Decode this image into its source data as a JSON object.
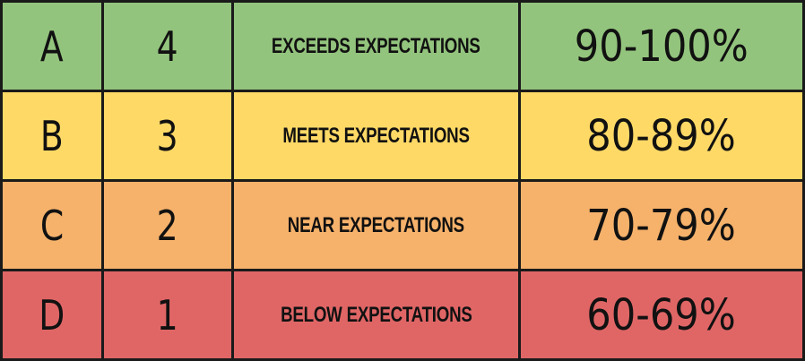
{
  "rows": [
    {
      "letter": "A",
      "number": "4",
      "description": "EXCEEDS EXPECTATIONS",
      "range": "90-100%",
      "color": "#93c47d"
    },
    {
      "letter": "B",
      "number": "3",
      "description": "MEETS EXPECTATIONS",
      "range": "80-89%",
      "color": "#ffd966"
    },
    {
      "letter": "C",
      "number": "2",
      "description": "NEAR EXPECTATIONS",
      "range": "70-79%",
      "color": "#f6b26b"
    },
    {
      "letter": "D",
      "number": "1",
      "description": "BELOW EXPECTATIONS",
      "range": "60-69%",
      "color": "#e06666"
    }
  ]
}
